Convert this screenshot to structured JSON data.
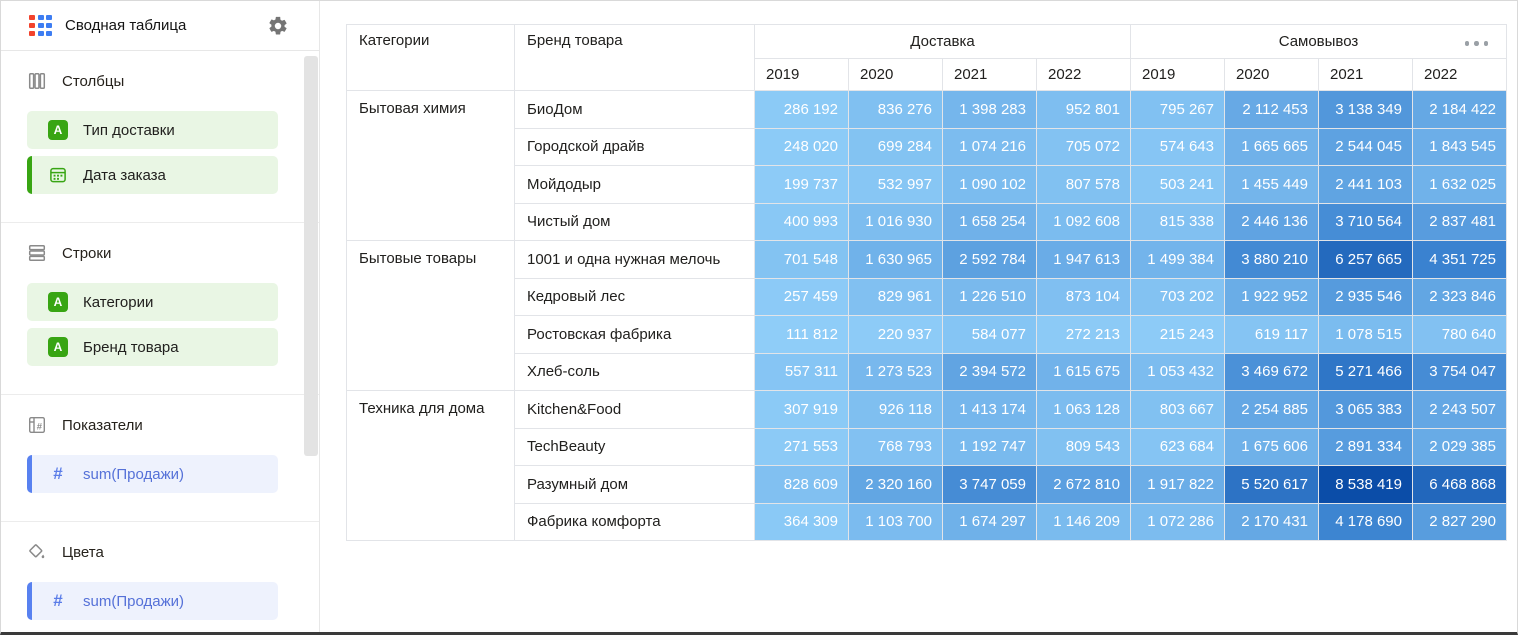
{
  "app": {
    "title": "Сводная таблица"
  },
  "colors": {
    "dimension_green": "#38a513",
    "dimension_bg": "#e9f6e4",
    "measure_blue_bar": "#5881f0",
    "measure_icon_blue": "#5b7de8",
    "measure_text": "#5571d8",
    "measure_bg": "#eef2fd",
    "logo_red": "#f2432d",
    "logo_blue": "#3d7df2",
    "section_icon_gray": "#8a8a8a",
    "gear_gray": "#757575"
  },
  "icons": {
    "pivot-table-icon": "3x3 grid, red left column, blue cells",
    "gear-icon": "settings gear",
    "columns-icon": "three vertical bars outline",
    "rows-icon": "three horizontal bars outline",
    "measures-icon": "table with # glyph",
    "colors-icon": "tilted paint bucket with drop",
    "text-field-icon": "green square with A",
    "calendar-field-icon": "green outlined calendar",
    "number-field-icon": "blue # glyph",
    "more-menu-icon": "three horizontal dots"
  },
  "sidebar": {
    "sections": [
      {
        "id": "columns",
        "label": "Столбцы",
        "icon": "columns-icon",
        "items": [
          {
            "label": "Тип доставки",
            "kind": "dimension",
            "icon": "text",
            "active_bar": false
          },
          {
            "label": "Дата заказа",
            "kind": "dimension",
            "icon": "date",
            "active_bar": true
          }
        ]
      },
      {
        "id": "rows",
        "label": "Строки",
        "icon": "rows-icon",
        "items": [
          {
            "label": "Категории",
            "kind": "dimension",
            "icon": "text",
            "active_bar": false
          },
          {
            "label": "Бренд товара",
            "kind": "dimension",
            "icon": "text",
            "active_bar": false
          }
        ]
      },
      {
        "id": "measures",
        "label": "Показатели",
        "icon": "measures-icon",
        "items": [
          {
            "label": "sum(Продажи)",
            "kind": "measure",
            "icon": "number",
            "active_bar": true
          }
        ]
      },
      {
        "id": "colors",
        "label": "Цвета",
        "icon": "colors-icon",
        "items": [
          {
            "label": "sum(Продажи)",
            "kind": "measure",
            "icon": "number",
            "active_bar": true
          }
        ]
      }
    ]
  },
  "chart_data": {
    "type": "table",
    "title": "Сводная таблица",
    "header": {
      "row_headers": [
        "Категории",
        "Бренд товара"
      ],
      "groups": [
        {
          "label": "Доставка",
          "years": [
            "2019",
            "2020",
            "2021",
            "2022"
          ]
        },
        {
          "label": "Самовывоз",
          "years": [
            "2019",
            "2020",
            "2021",
            "2022"
          ]
        }
      ]
    },
    "groups": [
      {
        "category": "Бытовая химия",
        "rows": [
          {
            "brand": "БиоДом",
            "values": [
              286192,
              836276,
              1398283,
              952801,
              795267,
              2112453,
              3138349,
              2184422
            ]
          },
          {
            "brand": "Городской драйв",
            "values": [
              248020,
              699284,
              1074216,
              705072,
              574643,
              1665665,
              2544045,
              1843545
            ]
          },
          {
            "brand": "Мойдодыр",
            "values": [
              199737,
              532997,
              1090102,
              807578,
              503241,
              1455449,
              2441103,
              1632025
            ]
          },
          {
            "brand": "Чистый дом",
            "values": [
              400993,
              1016930,
              1658254,
              1092608,
              815338,
              2446136,
              3710564,
              2837481
            ]
          }
        ]
      },
      {
        "category": "Бытовые товары",
        "rows": [
          {
            "brand": "1001 и одна нужная мелочь",
            "values": [
              701548,
              1630965,
              2592784,
              1947613,
              1499384,
              3880210,
              6257665,
              4351725
            ]
          },
          {
            "brand": "Кедровый лес",
            "values": [
              257459,
              829961,
              1226510,
              873104,
              703202,
              1922952,
              2935546,
              2323846
            ]
          },
          {
            "brand": "Ростовская фабрика",
            "values": [
              111812,
              220937,
              584077,
              272213,
              215243,
              619117,
              1078515,
              780640
            ]
          },
          {
            "brand": "Хлеб-соль",
            "values": [
              557311,
              1273523,
              2394572,
              1615675,
              1053432,
              3469672,
              5271466,
              3754047
            ]
          }
        ]
      },
      {
        "category": "Техника для дома",
        "rows": [
          {
            "brand": "Kitchen&Food",
            "values": [
              307919,
              926118,
              1413174,
              1063128,
              803667,
              2254885,
              3065383,
              2243507
            ]
          },
          {
            "brand": "TechBeauty",
            "values": [
              271553,
              768793,
              1192747,
              809543,
              623684,
              1675606,
              2891334,
              2029385
            ]
          },
          {
            "brand": "Разумный дом",
            "values": [
              828609,
              2320160,
              3747059,
              2672810,
              1917822,
              5520617,
              8538419,
              6468868
            ]
          },
          {
            "brand": "Фабрика комфорта",
            "values": [
              364309,
              1103700,
              1674297,
              1146209,
              1072286,
              2170431,
              4178690,
              2827290
            ]
          }
        ]
      }
    ],
    "color_scale": {
      "min": 111812,
      "max": 8538419,
      "stops": [
        "#8fcdf8",
        "#3a82d0",
        "#0b4da8"
      ]
    },
    "number_format": "thousands separated by narrow space",
    "value_text_color": "#ffffff"
  }
}
